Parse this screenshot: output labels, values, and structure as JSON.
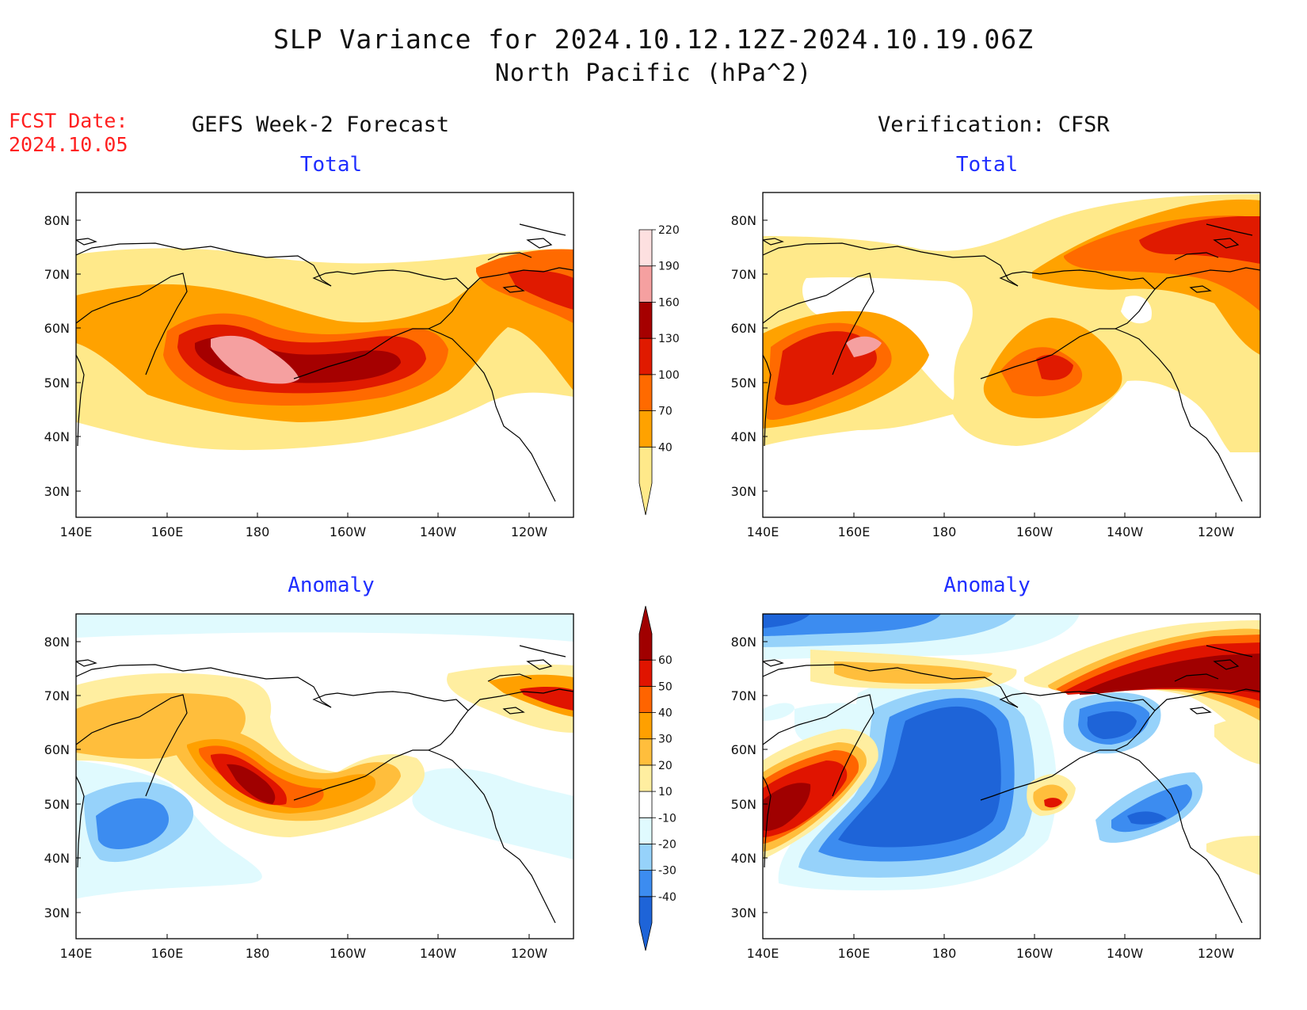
{
  "title": "SLP Variance for 2024.10.12.12Z-2024.10.19.06Z",
  "subtitle": "North Pacific (hPa^2)",
  "fcst_date_label": "FCST Date:",
  "fcst_date": "2024.10.05",
  "left_column_title": "GEFS Week-2 Forecast",
  "right_column_title": "Verification: CFSR",
  "panel_titles": {
    "forecast_total": "Total",
    "forecast_anomaly": "Anomaly",
    "verification_total": "Total",
    "verification_anomaly": "Anomaly"
  },
  "axes": {
    "lon_labels": [
      "140E",
      "160E",
      "180",
      "160W",
      "140W",
      "120W"
    ],
    "lat_labels": [
      "80N",
      "70N",
      "60N",
      "50N",
      "40N",
      "30N"
    ]
  },
  "total_colorbar": {
    "levels": [
      "40",
      "70",
      "100",
      "130",
      "160",
      "190",
      "220"
    ],
    "colors": [
      "#ffe98a",
      "#ffa200",
      "#ff6a00",
      "#e01a00",
      "#a50000",
      "#f5a0a0",
      "#fde0e0"
    ]
  },
  "anomaly_colorbar": {
    "levels": [
      "-40",
      "-30",
      "-20",
      "-10",
      "10",
      "20",
      "30",
      "40",
      "50",
      "60"
    ],
    "colors": [
      "#1e64d8",
      "#3c8cf0",
      "#96d2fa",
      "#e0fafe",
      "#ffffff",
      "#ffeea0",
      "#ffbe3c",
      "#ffa000",
      "#ff6400",
      "#e01400",
      "#a00000"
    ]
  }
}
